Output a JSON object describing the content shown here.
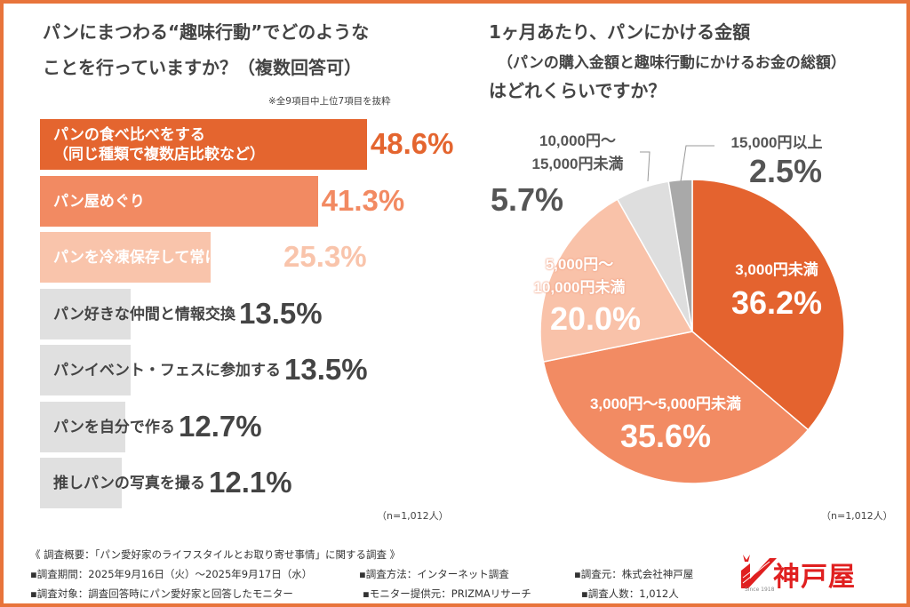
{
  "left": {
    "title_line1": "パンにまつわる“趣味行動”でどのようのような",
    "title_lines": [
      "パンにまつわる“趣味行動”でどのような",
      "ことを行っていますか？（複数回答可）"
    ],
    "note": "※全9項目中上位7項目を抜粋",
    "sample": "（n=1,012人）"
  },
  "right": {
    "title_lines": [
      "1ヶ月あたり、パンにかける金額",
      "（パンの購入金額と趣味行動にかけるお金の総額）",
      "はどれくらいですか？"
    ],
    "sample": "（n=1,012人）"
  },
  "chart_data": [
    {
      "type": "bar",
      "orientation": "horizontal",
      "categories": [
        "パンの食べ比べをする\n（同じ種類で複数店比較など）",
        "パン屋めぐり",
        "パンを冷凍保存して常にストック",
        "パン好きな仲間と情報交換",
        "パンイベント・フェスに参加する",
        "パンを自分で作る",
        "推しパンの写真を撮る"
      ],
      "values": [
        48.6,
        41.3,
        25.3,
        13.5,
        13.5,
        12.7,
        12.1
      ],
      "data_labels": [
        "48.6%",
        "41.3%",
        "25.3%",
        "13.5%",
        "13.5%",
        "12.7%",
        "12.1%"
      ],
      "colors": [
        "#e4652f",
        "#f28a62",
        "#f9c4ab",
        "#e0e0e0",
        "#e0e0e0",
        "#e0e0e0",
        "#e0e0e0"
      ],
      "label_colors": [
        "#ffffff",
        "#ffffff",
        "#ffffff",
        "#444444",
        "#444444",
        "#444444",
        "#444444"
      ],
      "pct_colors": [
        "#e4652f",
        "#f28a62",
        "#f9c4ab",
        "#444444",
        "#444444",
        "#444444",
        "#444444"
      ],
      "unit": "%"
    },
    {
      "type": "pie",
      "categories": [
        "3,000円未満",
        "3,000円〜5,000円未満",
        "5,000円〜\n10,000円未満",
        "10,000円〜\n15,000円未満",
        "15,000円以上"
      ],
      "values": [
        36.2,
        35.6,
        20.0,
        5.7,
        2.5
      ],
      "data_labels": [
        "36.2%",
        "35.6%",
        "20.0%",
        "5.7%",
        "2.5%"
      ],
      "colors": [
        "#e4632f",
        "#f28b63",
        "#f9c2a9",
        "#dedede",
        "#a9a9a9"
      ],
      "start": "top",
      "direction": "clockwise"
    }
  ],
  "footer": {
    "heading": "《 調査概要：「パン愛好家のライフスタイルとお取り寄せ事情」に関する調査 》",
    "items": [
      "▪調査期間：2025年9月16日（火）〜2025年9月17日（水）",
      "▪調査方法：インターネット調査",
      "▪調査元：株式会社神戸屋",
      "▪調査対象：調査回答時にパン愛好家と回答したモニター",
      "▪モニター提供元：PRIZMAリサーチ",
      "▪調査人数：1,012人"
    ],
    "logo_text": "神戸屋",
    "logo_since": "Since 1918",
    "brand_color": "#e02020"
  }
}
